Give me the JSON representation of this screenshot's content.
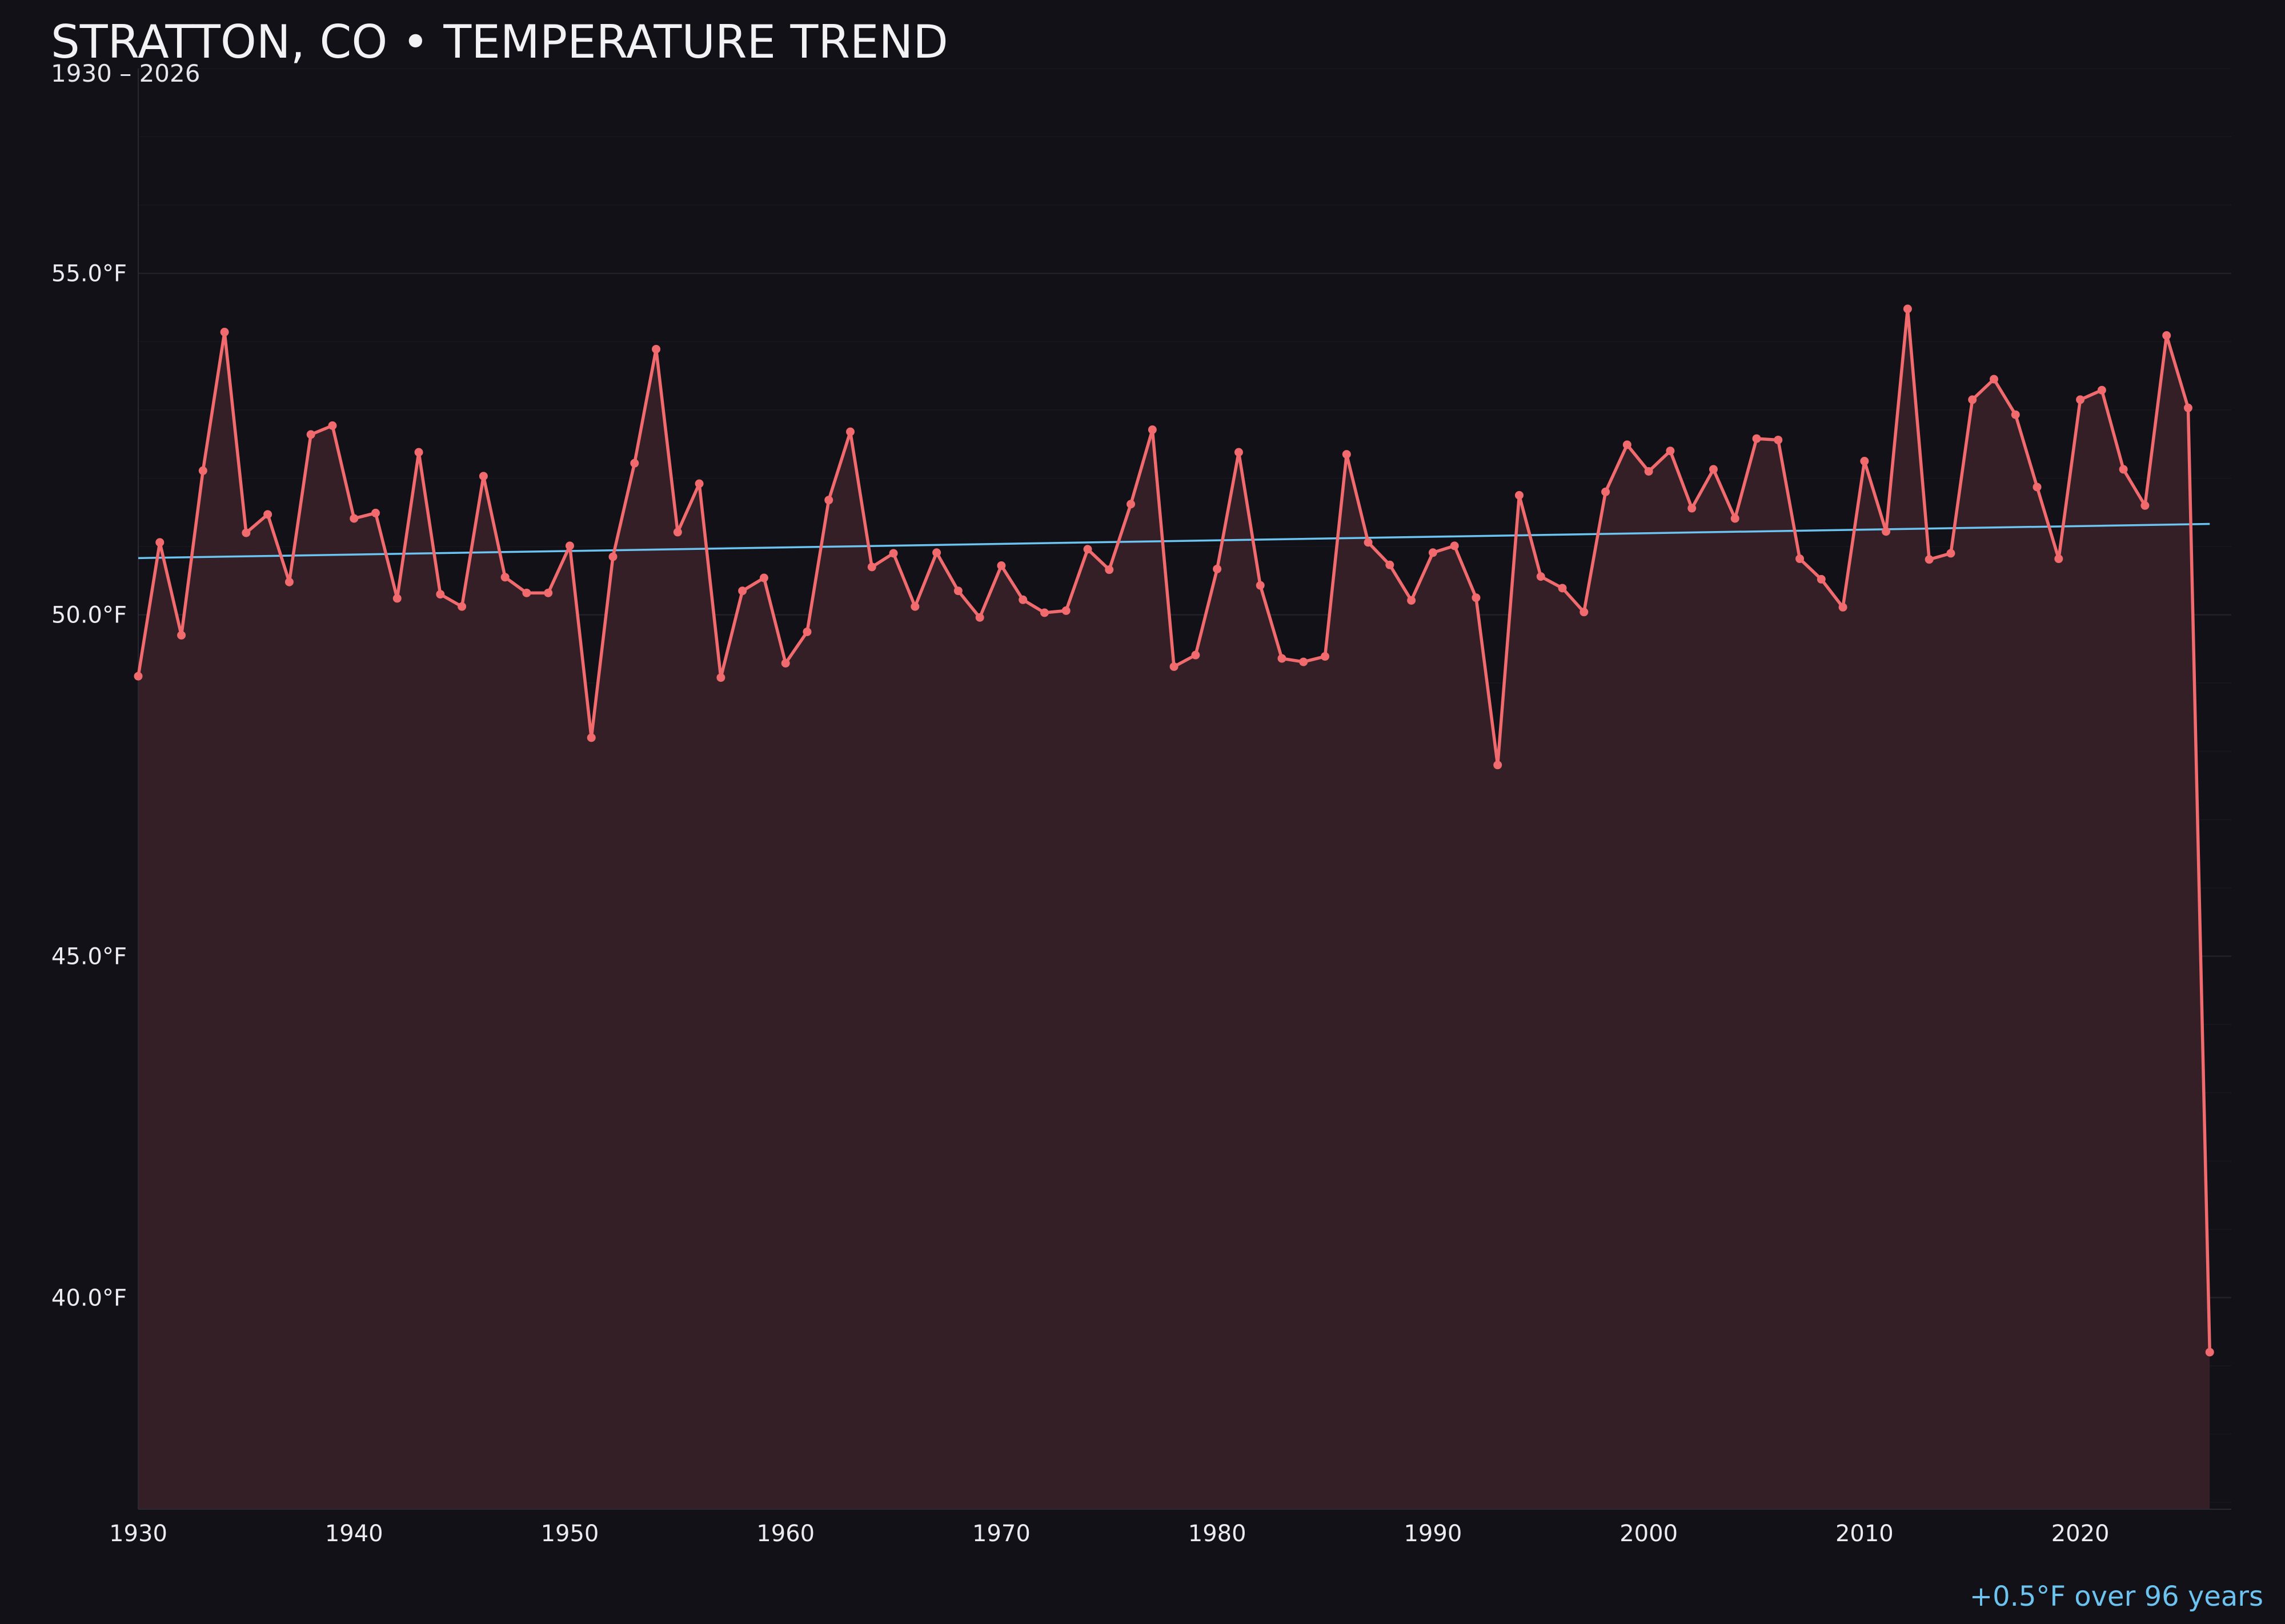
{
  "header": {
    "title": "STRATTON, CO • TEMPERATURE TREND",
    "subtitle": "1930 – 2026"
  },
  "annotation": "+0.5°F over 96 years",
  "colors": {
    "background": "#121117",
    "line": "#f06a6e",
    "area": "#341f26",
    "trend": "#6cc3f0",
    "grid": "#25232b"
  },
  "chart_data": {
    "type": "line",
    "xlim": [
      1930,
      2027
    ],
    "ylim": [
      36.9,
      58.0
    ],
    "x_ticks": [
      1930,
      1940,
      1950,
      1960,
      1970,
      1980,
      1990,
      2000,
      2010,
      2020
    ],
    "x_tick_labels": [
      "1930",
      "1940",
      "1950",
      "1960",
      "1970",
      "1980",
      "1990",
      "2000",
      "2010",
      "2020"
    ],
    "y_ticks": [
      40,
      45,
      50,
      55
    ],
    "y_tick_labels": [
      "40.0°F",
      "45.0°F",
      "50.0°F",
      "55.0°F"
    ],
    "grid": true,
    "area_fill": true,
    "x": [
      1930,
      1931,
      1932,
      1933,
      1934,
      1935,
      1936,
      1937,
      1938,
      1939,
      1940,
      1941,
      1942,
      1943,
      1944,
      1945,
      1946,
      1947,
      1948,
      1949,
      1950,
      1951,
      1952,
      1953,
      1954,
      1955,
      1956,
      1957,
      1958,
      1959,
      1960,
      1961,
      1962,
      1963,
      1964,
      1965,
      1966,
      1967,
      1968,
      1969,
      1970,
      1971,
      1972,
      1973,
      1974,
      1975,
      1976,
      1977,
      1978,
      1979,
      1980,
      1981,
      1982,
      1983,
      1984,
      1985,
      1986,
      1987,
      1988,
      1989,
      1990,
      1991,
      1992,
      1993,
      1994,
      1995,
      1996,
      1997,
      1998,
      1999,
      2000,
      2001,
      2002,
      2003,
      2004,
      2005,
      2006,
      2007,
      2008,
      2009,
      2010,
      2011,
      2012,
      2013,
      2014,
      2015,
      2016,
      2017,
      2018,
      2019,
      2020,
      2021,
      2022,
      2023,
      2024,
      2025,
      2026
    ],
    "series": [
      {
        "values": [
          49.1,
          51.06,
          49.7,
          52.11,
          54.14,
          51.2,
          51.47,
          50.48,
          52.64,
          52.77,
          51.41,
          51.49,
          50.24,
          52.38,
          50.3,
          50.12,
          52.03,
          50.55,
          50.32,
          50.32,
          51.01,
          48.2,
          50.85,
          52.22,
          53.89,
          51.21,
          51.92,
          49.08,
          50.35,
          50.54,
          49.29,
          49.75,
          51.68,
          52.68,
          50.7,
          50.9,
          50.12,
          50.91,
          50.35,
          49.96,
          50.72,
          50.22,
          50.03,
          50.06,
          50.96,
          50.66,
          51.62,
          52.71,
          49.24,
          49.41,
          50.67,
          52.38,
          50.43,
          49.36,
          49.31,
          49.39,
          52.35,
          51.06,
          50.73,
          50.21,
          50.91,
          51.01,
          50.25,
          47.8,
          51.75,
          50.56,
          50.39,
          50.04,
          51.8,
          52.49,
          52.1,
          52.4,
          51.56,
          52.13,
          51.41,
          52.58,
          52.56,
          50.82,
          50.52,
          50.11,
          52.25,
          51.22,
          54.48,
          50.81,
          50.9,
          53.15,
          53.45,
          52.93,
          51.87,
          50.82,
          53.15,
          53.29,
          52.13,
          51.6,
          54.09,
          53.03,
          39.2
        ]
      }
    ],
    "trend": {
      "x": [
        1930,
        2026
      ],
      "y": [
        50.83,
        51.33
      ]
    }
  }
}
